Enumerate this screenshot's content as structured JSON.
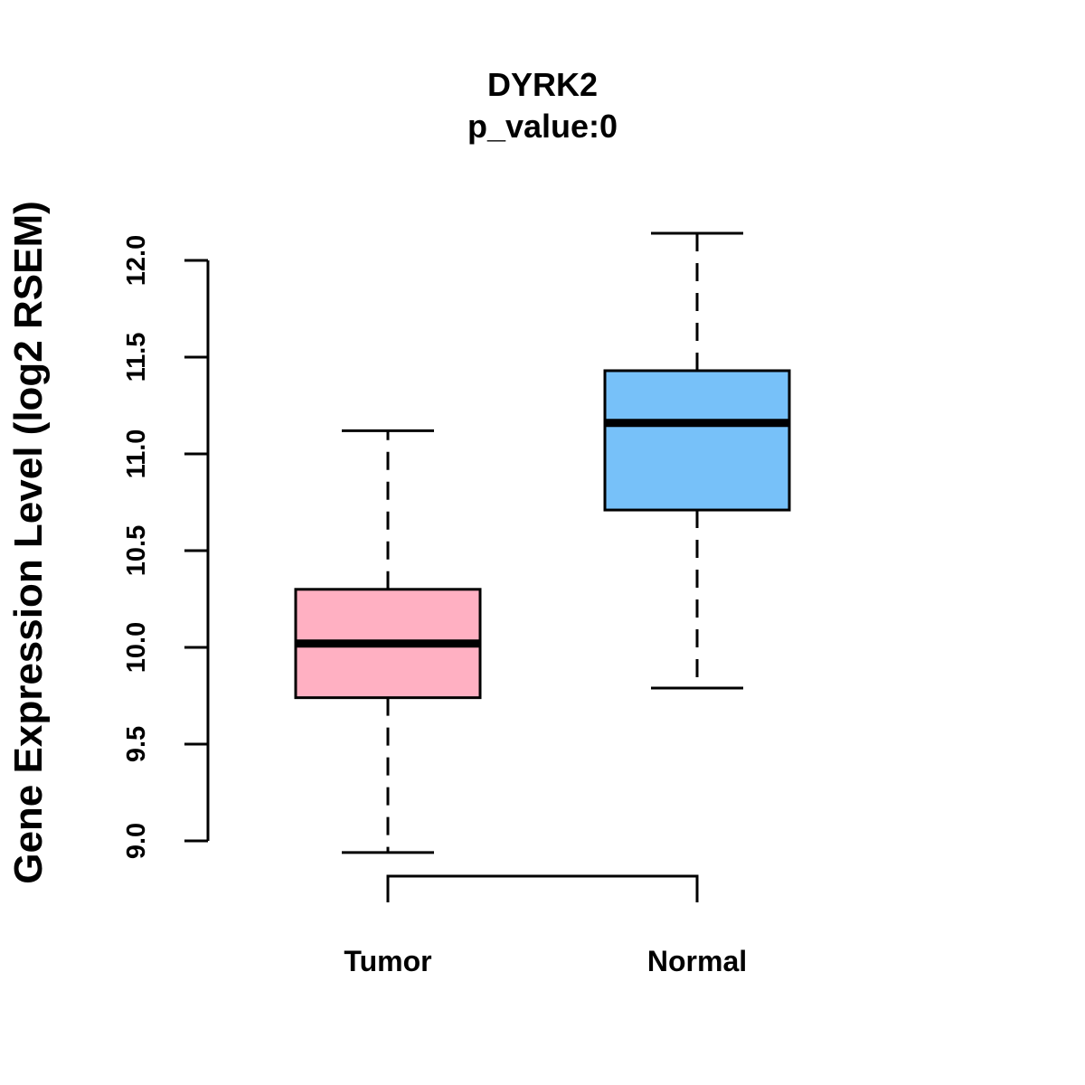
{
  "chart_data": {
    "type": "boxplot",
    "title": "DYRK2",
    "subtitle": "p_value:0",
    "xlabel": "",
    "ylabel": "Gene Expression Level (log2 RSEM)",
    "ylim": [
      8.95,
      12.15
    ],
    "yticks": [
      9.0,
      9.5,
      10.0,
      10.5,
      11.0,
      11.5,
      12.0
    ],
    "ytick_labels": [
      "9.0",
      "9.5",
      "10.0",
      "10.5",
      "11.0",
      "11.5",
      "12.0"
    ],
    "grid": false,
    "categories": [
      "Tumor",
      "Normal"
    ],
    "boxes": [
      {
        "name": "Tumor",
        "whisker_low": 8.94,
        "q1": 9.74,
        "median": 10.02,
        "q3": 10.3,
        "whisker_high": 11.12,
        "color": "#FFB0C2"
      },
      {
        "name": "Normal",
        "whisker_low": 9.79,
        "q1": 10.71,
        "median": 11.16,
        "q3": 11.43,
        "whisker_high": 12.14,
        "color": "#77C1F9"
      }
    ],
    "significance_bracket": {
      "from": "Tumor",
      "to": "Normal"
    }
  }
}
